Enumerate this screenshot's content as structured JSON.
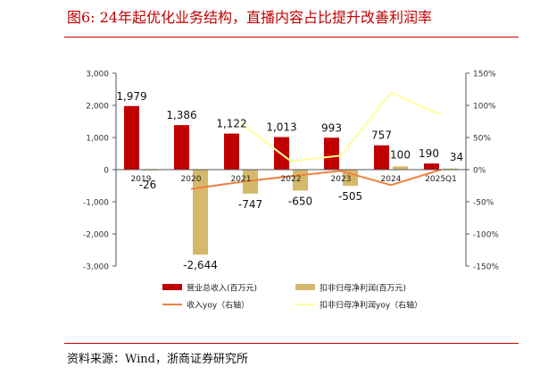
{
  "figure": {
    "title": "图6:   24年起优化业务结构，直播内容占比提升改善利润率",
    "source": "资料来源：Wind，浙商证券研究所"
  },
  "colors": {
    "revenue_bar": "#c00000",
    "profit_bar": "#d4b96a",
    "revenue_yoy_line": "#f08040",
    "profit_yoy_line": "#ffff99",
    "rule": "#c00000"
  },
  "chart_data": {
    "type": "bar",
    "categories": [
      "2019",
      "2020",
      "2021",
      "2022",
      "2023",
      "2024",
      "2025Q1"
    ],
    "series": [
      {
        "name": "营业总收入(百万元)",
        "kind": "bar",
        "axis": "left",
        "values": [
          1979,
          1386,
          1122,
          1013,
          993,
          757,
          190
        ],
        "labels": [
          "1,979",
          "1,386",
          "1,122",
          "1,013",
          "993",
          "757",
          "190"
        ]
      },
      {
        "name": "扣非归母净利润(百万元)",
        "kind": "bar",
        "axis": "left",
        "values": [
          -26,
          -2644,
          -747,
          -650,
          -505,
          100,
          34
        ],
        "labels": [
          "-26",
          "-2,644",
          "-747",
          "-650",
          "-505",
          "100",
          "34"
        ]
      },
      {
        "name": "收入yoy（右轴）",
        "kind": "line",
        "axis": "right",
        "values": [
          null,
          -30,
          -19,
          -10,
          -2,
          -24,
          0
        ]
      },
      {
        "name": "扣非归母净利润yoy（右轴）",
        "kind": "line",
        "axis": "right",
        "values": [
          null,
          null,
          72,
          13,
          22,
          120,
          85
        ]
      }
    ],
    "y_left": {
      "min": -3000,
      "max": 3000,
      "ticks": [
        3000,
        2000,
        1000,
        0,
        -1000,
        -2000,
        -3000
      ],
      "tick_labels": [
        "3,000",
        "2,000",
        "1,000",
        "0",
        "-1,000",
        "-2,000",
        "-3,000"
      ]
    },
    "y_right": {
      "min": -150,
      "max": 150,
      "ticks": [
        150,
        100,
        50,
        0,
        -50,
        -100,
        -150
      ],
      "tick_labels": [
        "150%",
        "100%",
        "50%",
        "0%",
        "-50%",
        "-100%",
        "-150%"
      ]
    },
    "grid": false,
    "legend_position": "bottom"
  }
}
